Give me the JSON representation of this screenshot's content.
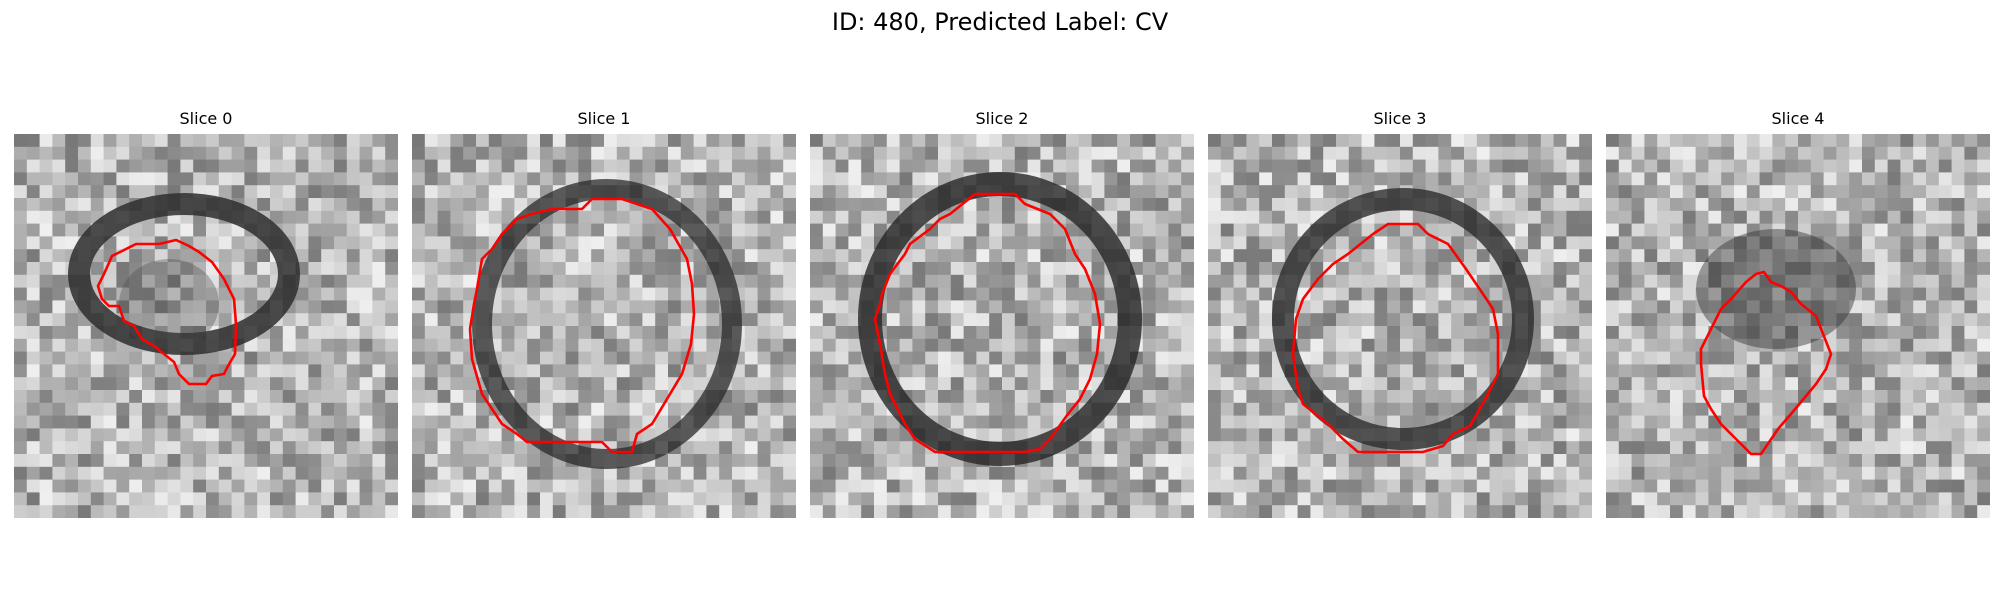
{
  "figure": {
    "title": "ID: 480, Predicted Label: CV"
  },
  "panels": [
    {
      "title": "Slice 0"
    },
    {
      "title": "Slice 1"
    },
    {
      "title": "Slice 2"
    },
    {
      "title": "Slice 3"
    },
    {
      "title": "Slice 4"
    }
  ],
  "colors": {
    "contour": "#ff0000",
    "background": "#ffffff",
    "colormap": "gray"
  }
}
